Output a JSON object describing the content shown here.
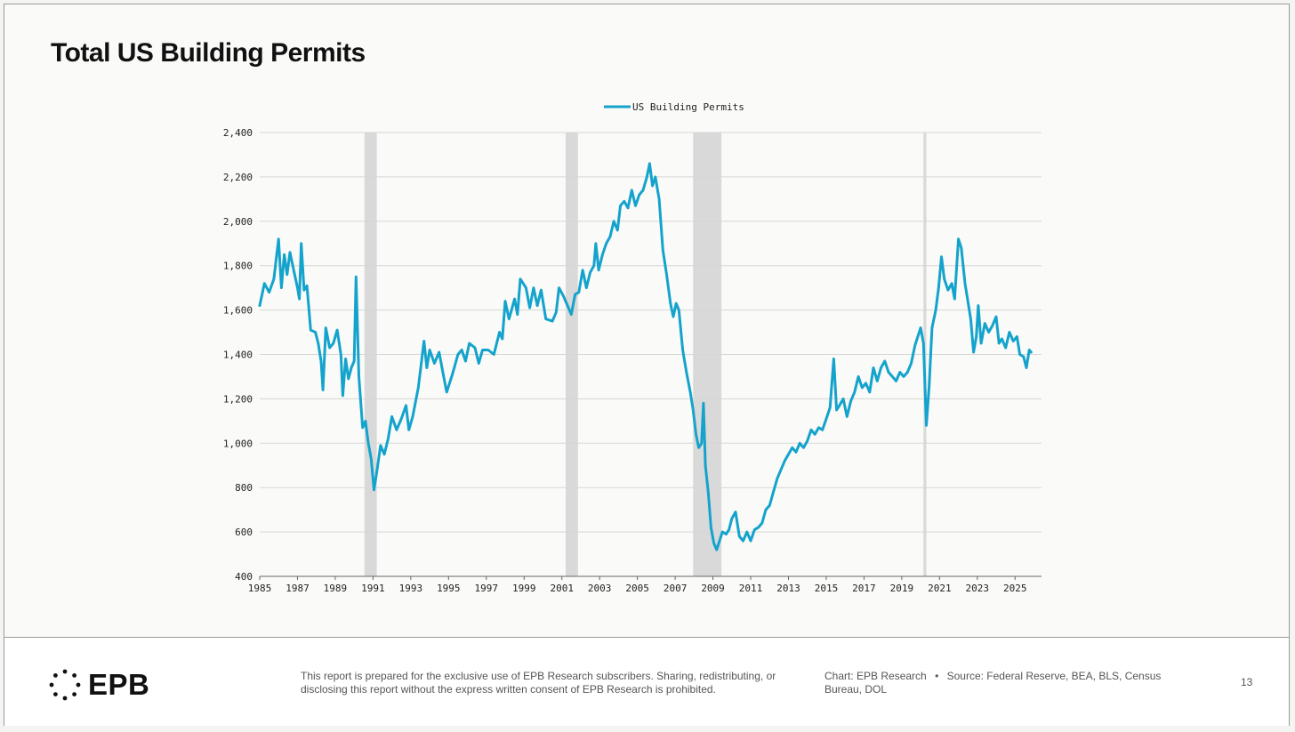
{
  "page": {
    "title": "Total US Building Permits",
    "page_number": "13"
  },
  "footer": {
    "logo_text": "EPB",
    "disclaimer": "This report is prepared for the exclusive use of EPB Research subscribers. Sharing, redistributing, or disclosing this report without the express written consent of EPB Research is prohibited.",
    "chart_credit": "Chart: EPB Research",
    "separator": "•",
    "source": "Source: Federal Reserve, BEA, BLS, Census Bureau, DOL"
  },
  "chart_data": {
    "type": "line",
    "title": "",
    "xlabel": "",
    "ylabel": "",
    "xlim": [
      1985,
      2026.4
    ],
    "ylim": [
      400,
      2400
    ],
    "y_ticks": [
      400,
      600,
      800,
      1000,
      1200,
      1400,
      1600,
      1800,
      2000,
      2200,
      2400
    ],
    "y_tick_labels": [
      "400",
      "600",
      "800",
      "1,000",
      "1,200",
      "1,400",
      "1,600",
      "1,800",
      "2,000",
      "2,200",
      "2,400"
    ],
    "x_ticks": [
      1985,
      1987,
      1989,
      1991,
      1993,
      1995,
      1997,
      1999,
      2001,
      2003,
      2005,
      2007,
      2009,
      2011,
      2013,
      2015,
      2017,
      2019,
      2021,
      2023,
      2025
    ],
    "x_tick_labels": [
      "1985",
      "1987",
      "1989",
      "1991",
      "1993",
      "1995",
      "1997",
      "1999",
      "2001",
      "2003",
      "2005",
      "2007",
      "2009",
      "2011",
      "2013",
      "2015",
      "2017",
      "2019",
      "2021",
      "2023",
      "2025"
    ],
    "grid": "horizontal",
    "legend": "top-center",
    "recessions": [
      [
        1990.55,
        1991.2
      ],
      [
        2001.2,
        2001.85
      ],
      [
        2007.95,
        2009.45
      ],
      [
        2020.15,
        2020.3
      ]
    ],
    "colors": {
      "line": "#14a3cc",
      "recession": "#d9d9d9",
      "grid": "#d6d6d6"
    },
    "series": [
      {
        "name": "US Building Permits",
        "points": [
          [
            1985.0,
            1620
          ],
          [
            1985.25,
            1720
          ],
          [
            1985.5,
            1680
          ],
          [
            1985.75,
            1740
          ],
          [
            1986.0,
            1920
          ],
          [
            1986.15,
            1700
          ],
          [
            1986.3,
            1850
          ],
          [
            1986.45,
            1760
          ],
          [
            1986.6,
            1860
          ],
          [
            1986.8,
            1780
          ],
          [
            1987.0,
            1700
          ],
          [
            1987.1,
            1650
          ],
          [
            1987.2,
            1900
          ],
          [
            1987.35,
            1690
          ],
          [
            1987.5,
            1710
          ],
          [
            1987.7,
            1510
          ],
          [
            1987.95,
            1500
          ],
          [
            1988.1,
            1450
          ],
          [
            1988.25,
            1370
          ],
          [
            1988.35,
            1240
          ],
          [
            1988.5,
            1520
          ],
          [
            1988.7,
            1430
          ],
          [
            1988.9,
            1450
          ],
          [
            1989.1,
            1510
          ],
          [
            1989.3,
            1400
          ],
          [
            1989.4,
            1215
          ],
          [
            1989.55,
            1380
          ],
          [
            1989.7,
            1290
          ],
          [
            1989.85,
            1340
          ],
          [
            1990.0,
            1370
          ],
          [
            1990.1,
            1750
          ],
          [
            1990.25,
            1300
          ],
          [
            1990.45,
            1070
          ],
          [
            1990.6,
            1100
          ],
          [
            1990.75,
            1000
          ],
          [
            1990.9,
            930
          ],
          [
            1991.05,
            790
          ],
          [
            1991.2,
            870
          ],
          [
            1991.4,
            990
          ],
          [
            1991.6,
            950
          ],
          [
            1991.8,
            1020
          ],
          [
            1992.0,
            1120
          ],
          [
            1992.25,
            1060
          ],
          [
            1992.5,
            1110
          ],
          [
            1992.75,
            1170
          ],
          [
            1992.9,
            1060
          ],
          [
            1993.1,
            1120
          ],
          [
            1993.4,
            1250
          ],
          [
            1993.7,
            1460
          ],
          [
            1993.85,
            1340
          ],
          [
            1994.0,
            1420
          ],
          [
            1994.25,
            1360
          ],
          [
            1994.5,
            1410
          ],
          [
            1994.7,
            1320
          ],
          [
            1994.9,
            1230
          ],
          [
            1995.2,
            1310
          ],
          [
            1995.5,
            1400
          ],
          [
            1995.7,
            1420
          ],
          [
            1995.9,
            1370
          ],
          [
            1996.1,
            1450
          ],
          [
            1996.4,
            1430
          ],
          [
            1996.6,
            1360
          ],
          [
            1996.8,
            1420
          ],
          [
            1997.1,
            1420
          ],
          [
            1997.4,
            1400
          ],
          [
            1997.7,
            1500
          ],
          [
            1997.85,
            1470
          ],
          [
            1998.0,
            1640
          ],
          [
            1998.2,
            1560
          ],
          [
            1998.5,
            1650
          ],
          [
            1998.65,
            1580
          ],
          [
            1998.8,
            1740
          ],
          [
            1999.1,
            1700
          ],
          [
            1999.3,
            1610
          ],
          [
            1999.5,
            1700
          ],
          [
            1999.7,
            1620
          ],
          [
            1999.9,
            1690
          ],
          [
            2000.15,
            1560
          ],
          [
            2000.5,
            1550
          ],
          [
            2000.7,
            1590
          ],
          [
            2000.85,
            1700
          ],
          [
            2001.1,
            1660
          ],
          [
            2001.3,
            1620
          ],
          [
            2001.5,
            1580
          ],
          [
            2001.7,
            1670
          ],
          [
            2001.9,
            1680
          ],
          [
            2002.1,
            1780
          ],
          [
            2002.3,
            1700
          ],
          [
            2002.5,
            1770
          ],
          [
            2002.7,
            1800
          ],
          [
            2002.8,
            1900
          ],
          [
            2002.95,
            1780
          ],
          [
            2003.15,
            1850
          ],
          [
            2003.35,
            1900
          ],
          [
            2003.55,
            1930
          ],
          [
            2003.75,
            2000
          ],
          [
            2003.95,
            1960
          ],
          [
            2004.1,
            2070
          ],
          [
            2004.3,
            2090
          ],
          [
            2004.5,
            2060
          ],
          [
            2004.7,
            2140
          ],
          [
            2004.9,
            2070
          ],
          [
            2005.1,
            2120
          ],
          [
            2005.3,
            2140
          ],
          [
            2005.5,
            2200
          ],
          [
            2005.65,
            2260
          ],
          [
            2005.8,
            2160
          ],
          [
            2005.95,
            2200
          ],
          [
            2006.15,
            2100
          ],
          [
            2006.35,
            1870
          ],
          [
            2006.55,
            1760
          ],
          [
            2006.75,
            1630
          ],
          [
            2006.9,
            1570
          ],
          [
            2007.05,
            1630
          ],
          [
            2007.2,
            1600
          ],
          [
            2007.4,
            1420
          ],
          [
            2007.6,
            1320
          ],
          [
            2007.8,
            1230
          ],
          [
            2007.95,
            1150
          ],
          [
            2008.1,
            1040
          ],
          [
            2008.25,
            980
          ],
          [
            2008.4,
            1000
          ],
          [
            2008.5,
            1180
          ],
          [
            2008.6,
            900
          ],
          [
            2008.75,
            780
          ],
          [
            2008.9,
            620
          ],
          [
            2009.05,
            550
          ],
          [
            2009.2,
            520
          ],
          [
            2009.35,
            560
          ],
          [
            2009.5,
            600
          ],
          [
            2009.7,
            590
          ],
          [
            2009.85,
            610
          ],
          [
            2010.0,
            660
          ],
          [
            2010.2,
            690
          ],
          [
            2010.4,
            580
          ],
          [
            2010.6,
            560
          ],
          [
            2010.8,
            600
          ],
          [
            2011.0,
            560
          ],
          [
            2011.2,
            610
          ],
          [
            2011.4,
            620
          ],
          [
            2011.6,
            640
          ],
          [
            2011.8,
            700
          ],
          [
            2012.0,
            720
          ],
          [
            2012.2,
            780
          ],
          [
            2012.4,
            840
          ],
          [
            2012.6,
            880
          ],
          [
            2012.8,
            920
          ],
          [
            2013.0,
            950
          ],
          [
            2013.2,
            980
          ],
          [
            2013.4,
            960
          ],
          [
            2013.6,
            1000
          ],
          [
            2013.8,
            980
          ],
          [
            2014.0,
            1010
          ],
          [
            2014.2,
            1060
          ],
          [
            2014.4,
            1040
          ],
          [
            2014.6,
            1070
          ],
          [
            2014.8,
            1060
          ],
          [
            2015.0,
            1110
          ],
          [
            2015.2,
            1160
          ],
          [
            2015.4,
            1380
          ],
          [
            2015.55,
            1150
          ],
          [
            2015.7,
            1170
          ],
          [
            2015.9,
            1200
          ],
          [
            2016.1,
            1120
          ],
          [
            2016.3,
            1190
          ],
          [
            2016.5,
            1230
          ],
          [
            2016.7,
            1300
          ],
          [
            2016.9,
            1250
          ],
          [
            2017.1,
            1270
          ],
          [
            2017.3,
            1230
          ],
          [
            2017.5,
            1340
          ],
          [
            2017.7,
            1280
          ],
          [
            2017.9,
            1340
          ],
          [
            2018.1,
            1370
          ],
          [
            2018.3,
            1320
          ],
          [
            2018.5,
            1300
          ],
          [
            2018.7,
            1280
          ],
          [
            2018.9,
            1320
          ],
          [
            2019.1,
            1300
          ],
          [
            2019.3,
            1320
          ],
          [
            2019.5,
            1360
          ],
          [
            2019.7,
            1440
          ],
          [
            2019.85,
            1480
          ],
          [
            2020.0,
            1520
          ],
          [
            2020.15,
            1450
          ],
          [
            2020.3,
            1080
          ],
          [
            2020.45,
            1260
          ],
          [
            2020.6,
            1520
          ],
          [
            2020.8,
            1600
          ],
          [
            2020.95,
            1700
          ],
          [
            2021.1,
            1840
          ],
          [
            2021.25,
            1740
          ],
          [
            2021.45,
            1690
          ],
          [
            2021.65,
            1720
          ],
          [
            2021.8,
            1650
          ],
          [
            2022.0,
            1920
          ],
          [
            2022.15,
            1880
          ],
          [
            2022.35,
            1720
          ],
          [
            2022.5,
            1640
          ],
          [
            2022.65,
            1560
          ],
          [
            2022.8,
            1410
          ],
          [
            2022.95,
            1480
          ],
          [
            2023.05,
            1620
          ],
          [
            2023.2,
            1450
          ],
          [
            2023.4,
            1540
          ],
          [
            2023.6,
            1500
          ],
          [
            2023.8,
            1530
          ],
          [
            2024.0,
            1570
          ],
          [
            2024.15,
            1450
          ],
          [
            2024.3,
            1470
          ],
          [
            2024.5,
            1430
          ],
          [
            2024.7,
            1500
          ],
          [
            2024.9,
            1460
          ],
          [
            2025.1,
            1480
          ],
          [
            2025.25,
            1400
          ],
          [
            2025.45,
            1390
          ],
          [
            2025.6,
            1340
          ],
          [
            2025.75,
            1420
          ],
          [
            2025.85,
            1410
          ]
        ]
      }
    ]
  }
}
